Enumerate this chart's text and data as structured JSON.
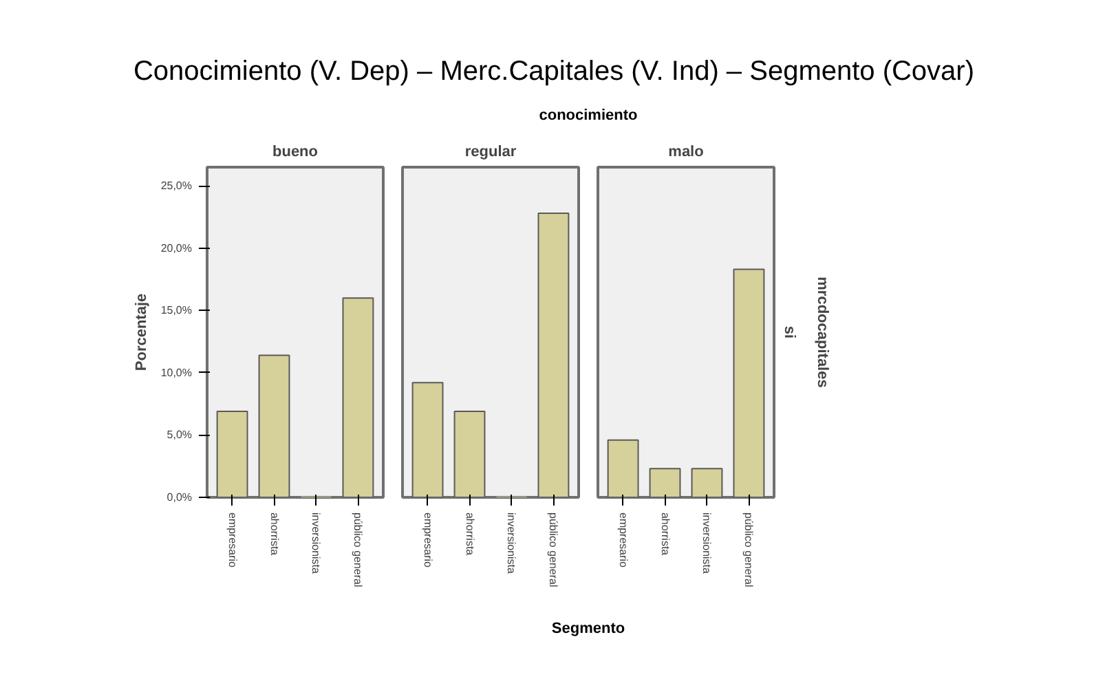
{
  "chart_data": [
    {
      "type": "bar",
      "title": "bueno",
      "annotations": [
        "Conocimiento (V. Dep) – Merc.Capitales (V. Ind) – Segmento (Covar)",
        "conocimiento"
      ],
      "ylabel": "Porcentaje",
      "categories": [
        "empresario",
        "ahorrista",
        "inversionista",
        "público general"
      ],
      "values": [
        6.9,
        11.4,
        0,
        16.0
      ],
      "color": "#d6d09a",
      "ylim": [
        0,
        26.5
      ],
      "yticks": [
        {
          "value": 0,
          "label": "0,0%"
        },
        {
          "value": 5,
          "label": "5,0%"
        },
        {
          "value": 10,
          "label": "10,0%"
        },
        {
          "value": 15,
          "label": "15,0%"
        },
        {
          "value": 20,
          "label": "20,0%"
        },
        {
          "value": 25,
          "label": "25,0%"
        }
      ],
      "grid": false
    },
    {
      "type": "bar",
      "title": "regular",
      "xlabel": "Segmento",
      "categories": [
        "empresario",
        "ahorrista",
        "inversionista",
        "público general"
      ],
      "values": [
        9.2,
        6.9,
        0,
        22.8
      ],
      "color": "#d6d09a",
      "ylim": [
        0,
        26.5
      ],
      "tick_labels": "x",
      "grid": false
    },
    {
      "type": "bar",
      "title": "malo",
      "y2label": "mrcdocapitales",
      "annotations": [
        "si"
      ],
      "categories": [
        "empresario",
        "ahorrista",
        "inversionista",
        "público general"
      ],
      "values": [
        4.6,
        2.3,
        2.3,
        18.3
      ],
      "color": "#d6d09a",
      "ylim": [
        0,
        26.5
      ],
      "tick_labels": "x",
      "grid": false
    }
  ]
}
